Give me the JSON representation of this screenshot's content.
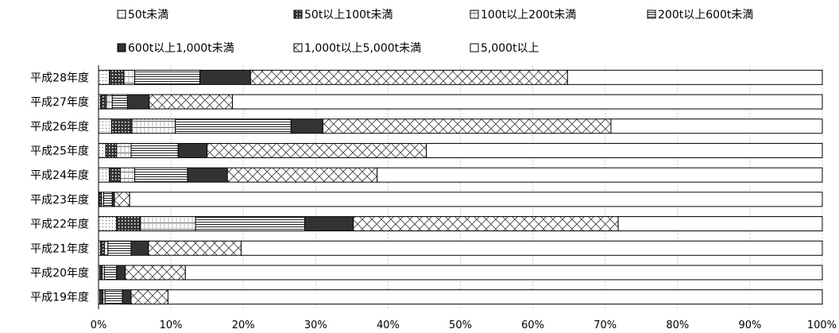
{
  "chart_data": {
    "type": "bar",
    "orientation": "horizontal",
    "stacked": "percent",
    "categories": [
      "平成28年度",
      "平成27年度",
      "平成26年度",
      "平成25年度",
      "平成24年度",
      "平成23年度",
      "平成22年度",
      "平成21年度",
      "平成20年度",
      "平成19年度"
    ],
    "series": [
      {
        "name": "50t未満",
        "pattern": "dots-light",
        "values": [
          1.5,
          0.3,
          1.8,
          1.0,
          1.5,
          0.1,
          2.5,
          0.3,
          0.2,
          0.2
        ]
      },
      {
        "name": "50t以上100t未満",
        "pattern": "dots-dark",
        "values": [
          2.0,
          0.8,
          2.8,
          1.5,
          1.5,
          0.3,
          3.3,
          0.5,
          0.3,
          0.4
        ]
      },
      {
        "name": "100t以上200t未満",
        "pattern": "bricks",
        "values": [
          1.5,
          0.8,
          6.0,
          2.0,
          2.0,
          0.3,
          7.6,
          0.5,
          0.3,
          0.3
        ]
      },
      {
        "name": "200t以上600t未満",
        "pattern": "hlines",
        "values": [
          9.0,
          2.1,
          16.0,
          6.5,
          7.3,
          1.2,
          15.1,
          3.2,
          1.7,
          2.4
        ]
      },
      {
        "name": "600t以上1,000t未満",
        "pattern": "dark",
        "values": [
          7.0,
          3.0,
          4.4,
          4.0,
          5.5,
          0.3,
          6.7,
          2.4,
          1.2,
          1.2
        ]
      },
      {
        "name": "1,000t以上5,000t未満",
        "pattern": "crosshatch",
        "values": [
          43.8,
          11.5,
          39.8,
          30.3,
          20.7,
          2.1,
          36.6,
          12.8,
          8.3,
          5.1
        ]
      },
      {
        "name": "5,000t以上",
        "pattern": "white",
        "values": [
          35.2,
          81.5,
          29.2,
          54.7,
          61.5,
          95.7,
          28.2,
          80.3,
          88.0,
          90.4
        ]
      }
    ],
    "x_ticks": [
      "0%",
      "10%",
      "20%",
      "30%",
      "40%",
      "50%",
      "60%",
      "70%",
      "80%",
      "90%",
      "100%"
    ],
    "xlim": [
      0,
      100
    ],
    "grid": true,
    "legend_position": "top"
  }
}
